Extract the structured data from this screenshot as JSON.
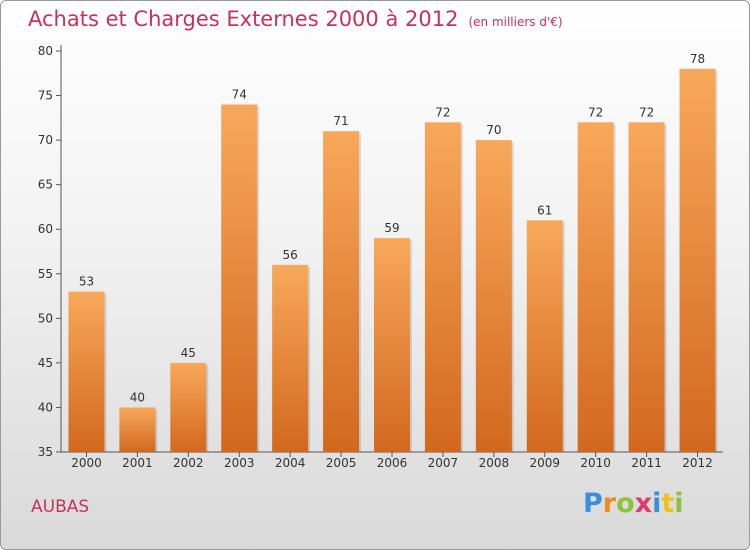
{
  "title": "Achats et Charges Externes 2000 à 2012",
  "unit": "(en milliers d'€)",
  "commune": "AUBAS",
  "brand": {
    "letters": [
      "P",
      "r",
      "o",
      "x",
      "i",
      "t",
      "i"
    ],
    "colors": [
      "#3a8fd8",
      "#f08a1c",
      "#8fc23a",
      "#e03c6a",
      "#3a8fd8",
      "#f0c020",
      "#8fc23a"
    ]
  },
  "colors": {
    "bar_top": "#f8a85a",
    "bar_bottom": "#d2681e",
    "title": "#c8325a",
    "axis": "#333333"
  },
  "chart_data": {
    "type": "bar",
    "categories": [
      "2000",
      "2001",
      "2002",
      "2003",
      "2004",
      "2005",
      "2006",
      "2007",
      "2008",
      "2009",
      "2010",
      "2011",
      "2012"
    ],
    "values": [
      53,
      40,
      45,
      74,
      56,
      71,
      59,
      72,
      70,
      61,
      72,
      72,
      78
    ],
    "ylim": [
      35,
      80
    ],
    "yticks": [
      35,
      40,
      45,
      50,
      55,
      60,
      65,
      70,
      75,
      80
    ],
    "grid": false,
    "title": "Achats et Charges Externes 2000 à 2012",
    "xlabel": "",
    "ylabel": ""
  }
}
